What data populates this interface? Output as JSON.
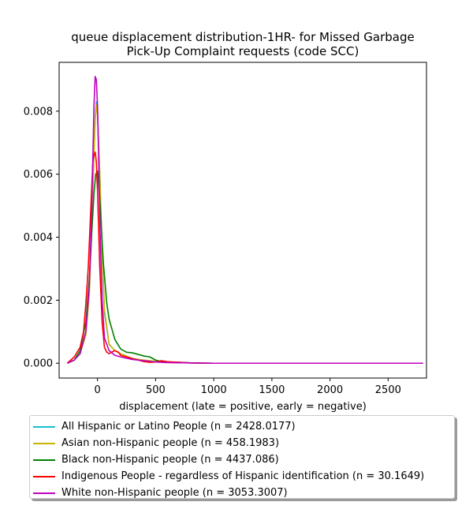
{
  "chart_data": {
    "type": "line",
    "title": "queue displacement distribution-1HR-  for Missed Garbage\nPick-Up Complaint  requests (code SCC)",
    "xlabel": "displacement (late = positive, early = negative)",
    "ylabel": "",
    "xlim": [
      -330,
      2830
    ],
    "ylim": [
      -0.00047,
      0.00955
    ],
    "xticks": [
      0,
      500,
      1000,
      1500,
      2000,
      2500
    ],
    "xtick_labels": [
      "0",
      "500",
      "1000",
      "1500",
      "2000",
      "2500"
    ],
    "yticks": [
      0.0,
      0.002,
      0.004,
      0.006,
      0.008
    ],
    "ytick_labels": [
      "0.000",
      "0.002",
      "0.004",
      "0.006",
      "0.008"
    ],
    "grid": false,
    "legend_position": "below plot",
    "series": [
      {
        "name": "All Hispanic or Latino People (n = 2428.0177)",
        "color": "#17becf",
        "x": [
          -260,
          -200,
          -150,
          -100,
          -70,
          -50,
          -30,
          -20,
          -10,
          0,
          20,
          40,
          60,
          100,
          150,
          200,
          300,
          400,
          500,
          600,
          800,
          1000,
          1500,
          2000,
          2500,
          2800
        ],
        "y": [
          0.0,
          0.0001,
          0.0003,
          0.001,
          0.0025,
          0.0045,
          0.0068,
          0.0078,
          0.0083,
          0.008,
          0.006,
          0.0035,
          0.0016,
          0.0006,
          0.0004,
          0.0003,
          0.00015,
          0.0001,
          5e-05,
          3e-05,
          1e-05,
          0.0,
          0.0,
          0.0,
          0.0,
          0.0
        ]
      },
      {
        "name": "Asian non-Hispanic people (n = 458.1983)",
        "color": "#c8b400",
        "x": [
          -260,
          -200,
          -150,
          -100,
          -70,
          -50,
          -30,
          -20,
          -10,
          0,
          20,
          40,
          60,
          100,
          150,
          200,
          300,
          400,
          500,
          600,
          800,
          1000,
          1500,
          2000,
          2500,
          2800
        ],
        "y": [
          0.0,
          0.0001,
          0.0003,
          0.0009,
          0.0022,
          0.0042,
          0.0066,
          0.0077,
          0.0082,
          0.0079,
          0.006,
          0.0036,
          0.0017,
          0.0006,
          0.0004,
          0.0003,
          0.00015,
          0.0001,
          6e-05,
          3e-05,
          1e-05,
          0.0,
          0.0,
          0.0,
          0.0,
          0.0
        ]
      },
      {
        "name": "Black non-Hispanic people (n = 4437.086)",
        "color": "#008000",
        "x": [
          -260,
          -200,
          -150,
          -100,
          -70,
          -50,
          -30,
          -15,
          0,
          20,
          50,
          80,
          100,
          150,
          200,
          250,
          300,
          350,
          400,
          450,
          500,
          550,
          600,
          700,
          800,
          1000,
          1500,
          2000,
          2500,
          2800
        ],
        "y": [
          0.0,
          0.0001,
          0.0004,
          0.0013,
          0.0027,
          0.0041,
          0.0054,
          0.006,
          0.0061,
          0.0052,
          0.0032,
          0.0019,
          0.0014,
          0.00075,
          0.00045,
          0.00035,
          0.00033,
          0.00028,
          0.00023,
          0.0002,
          0.0001,
          5e-05,
          4e-05,
          3e-05,
          1e-05,
          0.0,
          0.0,
          0.0,
          0.0,
          0.0
        ]
      },
      {
        "name": "Indigenous People - regardless of Hispanic identification (n = 30.1649)",
        "color": "#ff0000",
        "x": [
          -260,
          -200,
          -150,
          -120,
          -100,
          -80,
          -60,
          -40,
          -30,
          -20,
          -10,
          0,
          20,
          40,
          60,
          80,
          100,
          120,
          150,
          180,
          200,
          250,
          300,
          350,
          400,
          450,
          500,
          550,
          600,
          700,
          800,
          1000,
          1500,
          2000,
          2500,
          2800
        ],
        "y": [
          0.0,
          0.0002,
          0.0005,
          0.001,
          0.0019,
          0.003,
          0.0047,
          0.0064,
          0.0066,
          0.0067,
          0.0064,
          0.0055,
          0.003,
          0.0013,
          0.0005,
          0.00035,
          0.0003,
          0.00035,
          0.0004,
          0.00035,
          0.00025,
          0.0002,
          0.00015,
          0.0001,
          5e-05,
          3e-05,
          4e-05,
          8e-05,
          5e-05,
          3e-05,
          1e-05,
          0.0,
          0.0,
          0.0,
          0.0,
          0.0
        ]
      },
      {
        "name": "White non-Hispanic people (n = 3053.3007)",
        "color": "#bf00bf",
        "x": [
          -260,
          -200,
          -150,
          -100,
          -70,
          -50,
          -40,
          -30,
          -20,
          -10,
          0,
          10,
          20,
          40,
          60,
          100,
          150,
          200,
          300,
          400,
          500,
          600,
          800,
          1000,
          1500,
          2000,
          2500,
          2800
        ],
        "y": [
          0.0,
          0.0001,
          0.0003,
          0.001,
          0.0025,
          0.0048,
          0.0065,
          0.0082,
          0.0091,
          0.009,
          0.0082,
          0.0065,
          0.0045,
          0.002,
          0.0008,
          0.0004,
          0.00025,
          0.0002,
          0.00012,
          8e-05,
          4e-05,
          2e-05,
          1e-05,
          0.0,
          0.0,
          0.0,
          0.0,
          0.0
        ]
      }
    ]
  }
}
